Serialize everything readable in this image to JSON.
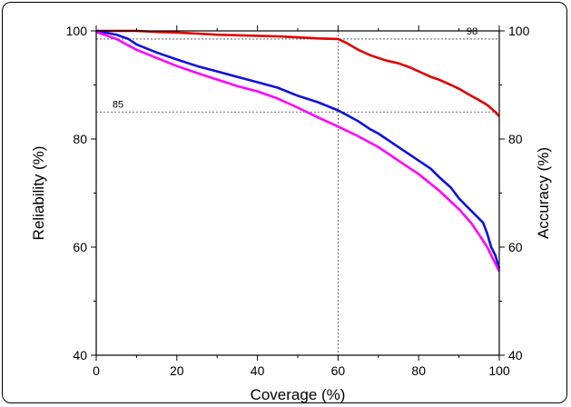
{
  "chart_data": {
    "type": "line",
    "title": "",
    "xlabel": "Coverage (%)",
    "ylabel_left": "Reliability (%)",
    "ylabel_right": "Accuracy (%)",
    "xlim": [
      0,
      100
    ],
    "ylim": [
      40,
      100
    ],
    "x_ticks": [
      0,
      20,
      40,
      60,
      80,
      100
    ],
    "y_ticks": [
      40,
      60,
      80,
      100
    ],
    "grid": false,
    "legend": "none",
    "series": [
      {
        "color": "#e00000",
        "x": [
          0,
          5,
          10,
          15,
          20,
          25,
          30,
          35,
          40,
          45,
          50,
          55,
          60,
          62,
          65,
          68,
          70,
          72,
          75,
          78,
          80,
          83,
          85,
          88,
          90,
          93,
          95,
          97,
          99,
          100
        ],
        "y": [
          100,
          100,
          100,
          99.8,
          99.7,
          99.5,
          99.3,
          99.2,
          99.1,
          99.0,
          98.8,
          98.6,
          98.5,
          97.8,
          96.5,
          95.5,
          95.0,
          94.5,
          94.0,
          93.2,
          92.5,
          91.5,
          91.0,
          90.0,
          89.3,
          88.0,
          87.2,
          86.3,
          85.0,
          84.2
        ]
      },
      {
        "color": "#1010e0",
        "x": [
          0,
          5,
          8,
          10,
          15,
          20,
          25,
          30,
          35,
          40,
          45,
          50,
          55,
          60,
          62,
          65,
          68,
          70,
          72,
          75,
          78,
          80,
          83,
          85,
          88,
          90,
          92,
          94,
          96,
          97,
          98,
          99,
          100
        ],
        "y": [
          100,
          99.3,
          98.5,
          97.5,
          96.0,
          94.7,
          93.5,
          92.5,
          91.5,
          90.5,
          89.5,
          88.0,
          86.8,
          85.3,
          84.5,
          83.3,
          81.8,
          81.0,
          80.0,
          78.5,
          77.0,
          76.0,
          74.5,
          73.0,
          71.0,
          69.0,
          67.5,
          66.0,
          64.5,
          62.5,
          60.0,
          58.5,
          56.0
        ]
      },
      {
        "color": "#ff00ff",
        "x": [
          0,
          5,
          10,
          15,
          20,
          25,
          30,
          35,
          40,
          45,
          50,
          55,
          60,
          65,
          70,
          75,
          80,
          85,
          90,
          93,
          95,
          97,
          98,
          99,
          100
        ],
        "y": [
          99.8,
          98.5,
          96.5,
          95.0,
          93.5,
          92.2,
          91.0,
          89.8,
          88.8,
          87.5,
          85.8,
          84.0,
          82.3,
          80.5,
          78.5,
          76.0,
          73.5,
          70.5,
          67.0,
          64.5,
          62.3,
          60.0,
          58.5,
          57.0,
          55.5
        ]
      }
    ],
    "reference_lines": [
      {
        "orientation": "horizontal",
        "value": 98.5,
        "label": "98"
      },
      {
        "orientation": "horizontal",
        "value": 85.0,
        "label": "85"
      },
      {
        "orientation": "vertical",
        "value": 60,
        "label": ""
      }
    ]
  }
}
